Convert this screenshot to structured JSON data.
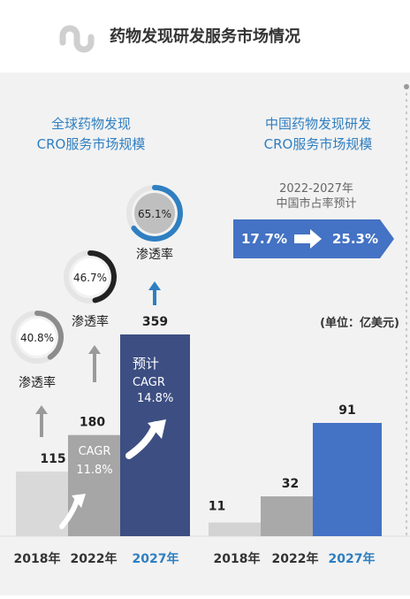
{
  "header": {
    "title": "药物发现研发服务市场情况",
    "logo_icon": "stumbleupon-logo-icon"
  },
  "colors": {
    "global_2018": "#d9d9d9",
    "global_2022": "#a6a6a6",
    "global_2027": "#3d4e82",
    "china_2018": "#d3d3d3",
    "china_2022": "#a9a9a9",
    "china_2027": "#4472c4",
    "accent_blue": "#2f7fc1",
    "arrow_banner": "#4472c4",
    "ring_gray": "#8c8c8c",
    "ring_dark": "#222222",
    "ring_blue": "#2f7fc1"
  },
  "chart_data": [
    {
      "type": "bar",
      "title": "全球药物发现CRO服务市场规模",
      "title_lines": [
        "全球药物发现",
        "CRO服务市场规模"
      ],
      "categories": [
        "2018年",
        "2022年",
        "2027年"
      ],
      "values": [
        115,
        180,
        359
      ],
      "value_labels": [
        "115",
        "180",
        "359"
      ],
      "penetration": [
        {
          "label": "渗透率",
          "value": "40.8%",
          "fraction": 0.408
        },
        {
          "label": "渗透率",
          "value": "46.7%",
          "fraction": 0.467
        },
        {
          "label": "渗透率",
          "value": "65.1%",
          "fraction": 0.651
        }
      ],
      "cagr": [
        {
          "label": "CAGR",
          "value": "11.8%"
        },
        {
          "label": "预计",
          "sub": "CAGR",
          "value": "14.8%"
        }
      ]
    },
    {
      "type": "bar",
      "title": "中国药物发现研发CRO服务市场规模",
      "title_lines": [
        "中国药物发现研发",
        "CRO服务市场规模"
      ],
      "categories": [
        "2018年",
        "2022年",
        "2027年"
      ],
      "values": [
        11,
        32,
        91
      ],
      "value_labels": [
        "11",
        "32",
        "91"
      ],
      "unit": "(单位：亿美元)",
      "share_forecast": {
        "heading_lines": [
          "2022-2027年",
          "中国市占率预计"
        ],
        "from": "17.7%",
        "to": "25.3%"
      }
    }
  ]
}
